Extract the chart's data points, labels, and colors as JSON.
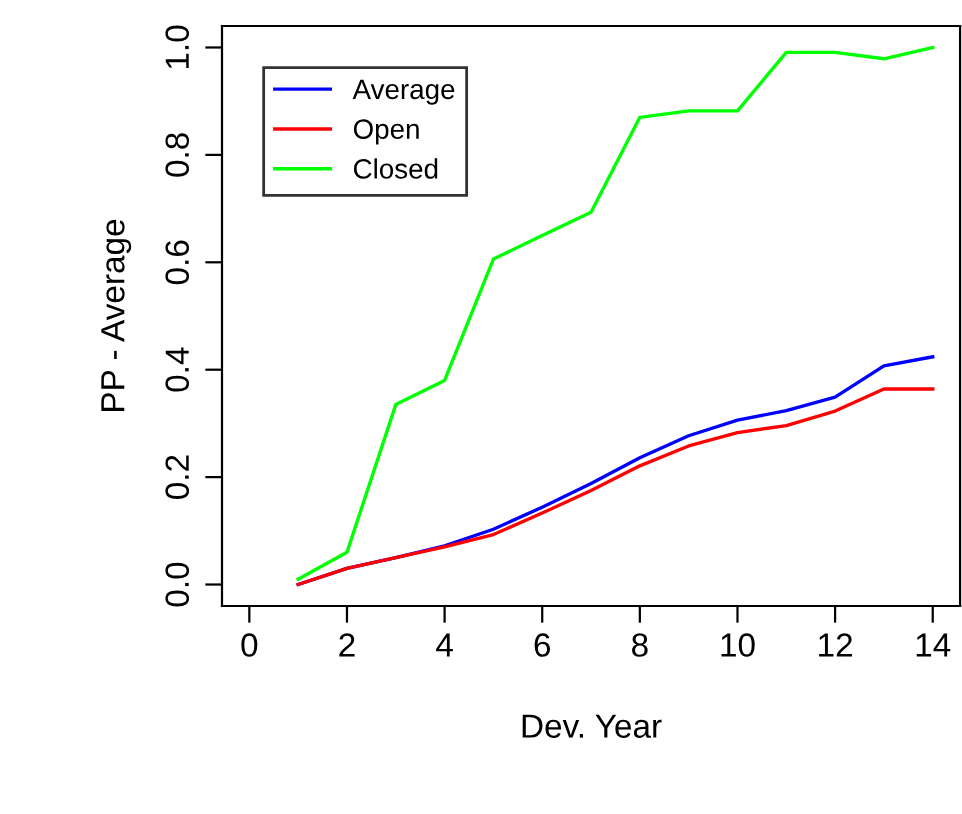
{
  "chart_data": {
    "type": "line",
    "xlabel": "Dev. Year",
    "ylabel": "PP - Average",
    "x": [
      1,
      2,
      3,
      4,
      5,
      6,
      7,
      8,
      9,
      10,
      11,
      12,
      13,
      14
    ],
    "series": [
      {
        "name": "Average",
        "color": "#0000ff",
        "values": [
          0.0,
          0.03,
          0.05,
          0.072,
          0.103,
          0.144,
          0.188,
          0.236,
          0.277,
          0.306,
          0.324,
          0.349,
          0.407,
          0.424
        ]
      },
      {
        "name": "Open",
        "color": "#ff0000",
        "values": [
          0.0,
          0.03,
          0.05,
          0.07,
          0.093,
          0.133,
          0.175,
          0.221,
          0.258,
          0.283,
          0.296,
          0.323,
          0.364,
          0.364
        ]
      },
      {
        "name": "Closed",
        "color": "#00ff00",
        "values": [
          0.01,
          0.06,
          0.335,
          0.38,
          0.606,
          0.65,
          0.693,
          0.87,
          0.882,
          0.882,
          0.991,
          0.991,
          0.979,
          1.0
        ]
      }
    ],
    "xlim": [
      -0.56,
      14.56
    ],
    "ylim": [
      -0.04,
      1.04
    ],
    "xticks": [
      0,
      2,
      4,
      6,
      8,
      10,
      12,
      14
    ],
    "yticks": [
      {
        "value": 0,
        "label": "0.0"
      },
      {
        "value": 0.2,
        "label": "0.2"
      },
      {
        "value": 0.4,
        "label": "0.4"
      },
      {
        "value": 0.6,
        "label": "0.6"
      },
      {
        "value": 0.8,
        "label": "0.8"
      },
      {
        "value": 1.0,
        "label": "1.0"
      }
    ],
    "legend": "top left",
    "grid": false
  }
}
